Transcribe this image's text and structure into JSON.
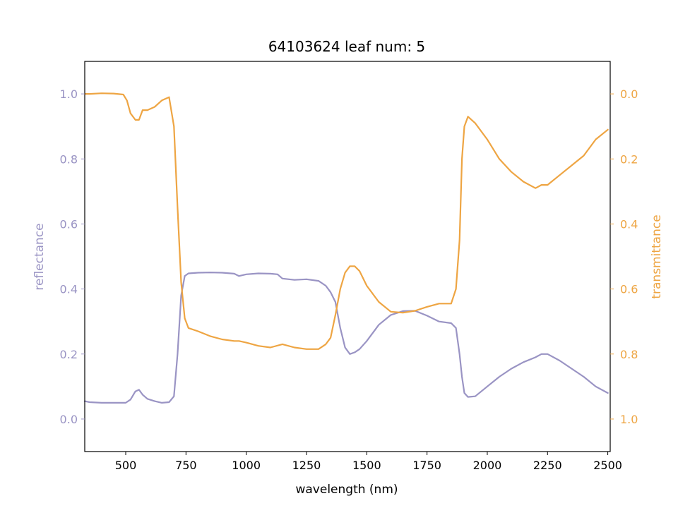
{
  "chart_data": {
    "type": "line",
    "title": "64103624 leaf num: 5",
    "xlabel": "wavelength (nm)",
    "ylabel_left": "reflectance",
    "ylabel_right": "transmittance",
    "xlim": [
      330,
      2510
    ],
    "ylim_left": [
      -0.1,
      1.1
    ],
    "ylim_right": [
      1.1,
      -0.1
    ],
    "right_axis_inverted": true,
    "grid": false,
    "x_ticks": [
      500,
      750,
      1000,
      1250,
      1500,
      1750,
      2000,
      2250,
      2500
    ],
    "y_ticks_left": [
      "0.0",
      "0.2",
      "0.4",
      "0.6",
      "0.8",
      "1.0"
    ],
    "y_ticks_right": [
      "0.0",
      "0.2",
      "0.4",
      "0.6",
      "0.8",
      "1.0"
    ],
    "colors": {
      "reflectance": "#9a94c4",
      "transmittance": "#eea543",
      "axes": "#000000"
    },
    "series": [
      {
        "name": "reflectance",
        "axis": "left",
        "x": [
          330,
          350,
          400,
          450,
          500,
          520,
          540,
          555,
          570,
          590,
          620,
          650,
          680,
          700,
          715,
          730,
          745,
          760,
          800,
          850,
          900,
          950,
          970,
          1000,
          1050,
          1100,
          1130,
          1150,
          1200,
          1250,
          1300,
          1330,
          1350,
          1370,
          1390,
          1410,
          1430,
          1450,
          1470,
          1500,
          1550,
          1600,
          1650,
          1700,
          1750,
          1800,
          1850,
          1870,
          1885,
          1895,
          1905,
          1920,
          1950,
          2000,
          2050,
          2100,
          2150,
          2200,
          2225,
          2250,
          2300,
          2350,
          2400,
          2450,
          2500
        ],
        "y": [
          0.055,
          0.052,
          0.05,
          0.05,
          0.05,
          0.06,
          0.085,
          0.09,
          0.075,
          0.062,
          0.055,
          0.05,
          0.052,
          0.07,
          0.2,
          0.38,
          0.44,
          0.448,
          0.45,
          0.451,
          0.45,
          0.447,
          0.44,
          0.445,
          0.448,
          0.447,
          0.445,
          0.432,
          0.428,
          0.43,
          0.425,
          0.41,
          0.39,
          0.36,
          0.28,
          0.22,
          0.2,
          0.205,
          0.215,
          0.24,
          0.29,
          0.32,
          0.332,
          0.333,
          0.318,
          0.3,
          0.295,
          0.28,
          0.2,
          0.13,
          0.08,
          0.068,
          0.07,
          0.1,
          0.13,
          0.155,
          0.175,
          0.19,
          0.2,
          0.2,
          0.18,
          0.155,
          0.13,
          0.1,
          0.08
        ]
      },
      {
        "name": "transmittance",
        "axis": "right",
        "x": [
          330,
          350,
          400,
          450,
          490,
          505,
          520,
          540,
          555,
          570,
          590,
          620,
          650,
          680,
          700,
          715,
          730,
          745,
          760,
          800,
          850,
          900,
          950,
          970,
          1000,
          1050,
          1100,
          1150,
          1200,
          1250,
          1300,
          1330,
          1350,
          1370,
          1390,
          1410,
          1430,
          1450,
          1470,
          1500,
          1550,
          1600,
          1650,
          1700,
          1750,
          1800,
          1850,
          1870,
          1885,
          1895,
          1905,
          1920,
          1950,
          2000,
          2050,
          2100,
          2150,
          2200,
          2225,
          2250,
          2300,
          2350,
          2400,
          2450,
          2500
        ],
        "y": [
          0.0,
          0.0,
          -0.002,
          -0.001,
          0.002,
          0.02,
          0.06,
          0.08,
          0.08,
          0.05,
          0.05,
          0.04,
          0.02,
          0.01,
          0.1,
          0.35,
          0.58,
          0.69,
          0.72,
          0.73,
          0.745,
          0.755,
          0.76,
          0.76,
          0.765,
          0.775,
          0.78,
          0.77,
          0.78,
          0.785,
          0.785,
          0.77,
          0.75,
          0.68,
          0.6,
          0.55,
          0.53,
          0.53,
          0.545,
          0.59,
          0.64,
          0.67,
          0.673,
          0.667,
          0.655,
          0.645,
          0.645,
          0.6,
          0.45,
          0.2,
          0.1,
          0.07,
          0.09,
          0.14,
          0.2,
          0.24,
          0.27,
          0.29,
          0.28,
          0.28,
          0.25,
          0.22,
          0.19,
          0.14,
          0.11
        ]
      }
    ]
  }
}
